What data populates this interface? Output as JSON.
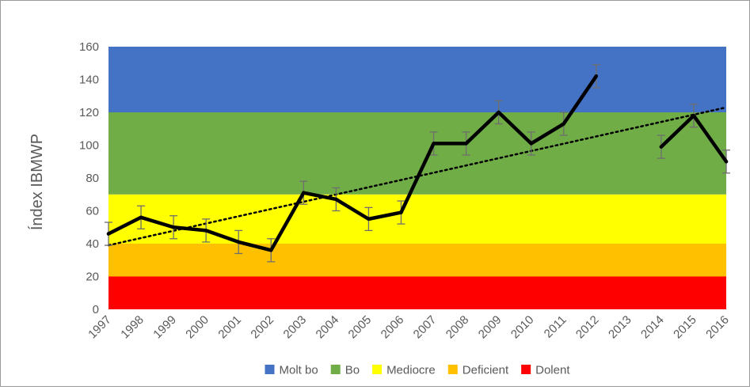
{
  "chart_data": {
    "type": "line",
    "title": "",
    "xlabel": "",
    "ylabel": "Índex IBMWP",
    "ylim": [
      0,
      160
    ],
    "yticks": [
      0,
      20,
      40,
      60,
      80,
      100,
      120,
      140,
      160
    ],
    "grid": false,
    "categories": [
      "1997",
      "1998",
      "1999",
      "2000",
      "2001",
      "2002",
      "2003",
      "2004",
      "2005",
      "2006",
      "2007",
      "2008",
      "2009",
      "2010",
      "2011",
      "2012",
      "2013",
      "2014",
      "2015",
      "2016"
    ],
    "series": [
      {
        "values": [
          46,
          56,
          50,
          48,
          41,
          36,
          71,
          67,
          55,
          59,
          101,
          101,
          120,
          101,
          113,
          142,
          null,
          99,
          118,
          90
        ],
        "error": [
          7,
          7,
          7,
          7,
          7,
          7,
          7,
          7,
          7,
          7,
          7,
          7,
          7,
          7,
          7,
          7,
          null,
          7,
          7,
          7
        ],
        "color": "#000000"
      }
    ],
    "trendline": {
      "style": "dotted",
      "start": 39,
      "end": 123,
      "color": "#000000"
    },
    "bands": [
      {
        "name": "Dolent",
        "from": 0,
        "to": 20,
        "color": "#FF0000"
      },
      {
        "name": "Deficient",
        "from": 20,
        "to": 40,
        "color": "#FFC000"
      },
      {
        "name": "Mediocre",
        "from": 40,
        "to": 70,
        "color": "#FFFF00"
      },
      {
        "name": "Bo",
        "from": 70,
        "to": 120,
        "color": "#70AD47"
      },
      {
        "name": "Molt bo",
        "from": 120,
        "to": 160,
        "color": "#4472C4"
      }
    ],
    "legend": {
      "placement": "bottom",
      "items": [
        {
          "name": "Molt bo",
          "color": "#4472C4"
        },
        {
          "name": "Bo",
          "color": "#70AD47"
        },
        {
          "name": "Mediocre",
          "color": "#FFFF00"
        },
        {
          "name": "Deficient",
          "color": "#FFC000"
        },
        {
          "name": "Dolent",
          "color": "#FF0000"
        }
      ]
    }
  }
}
